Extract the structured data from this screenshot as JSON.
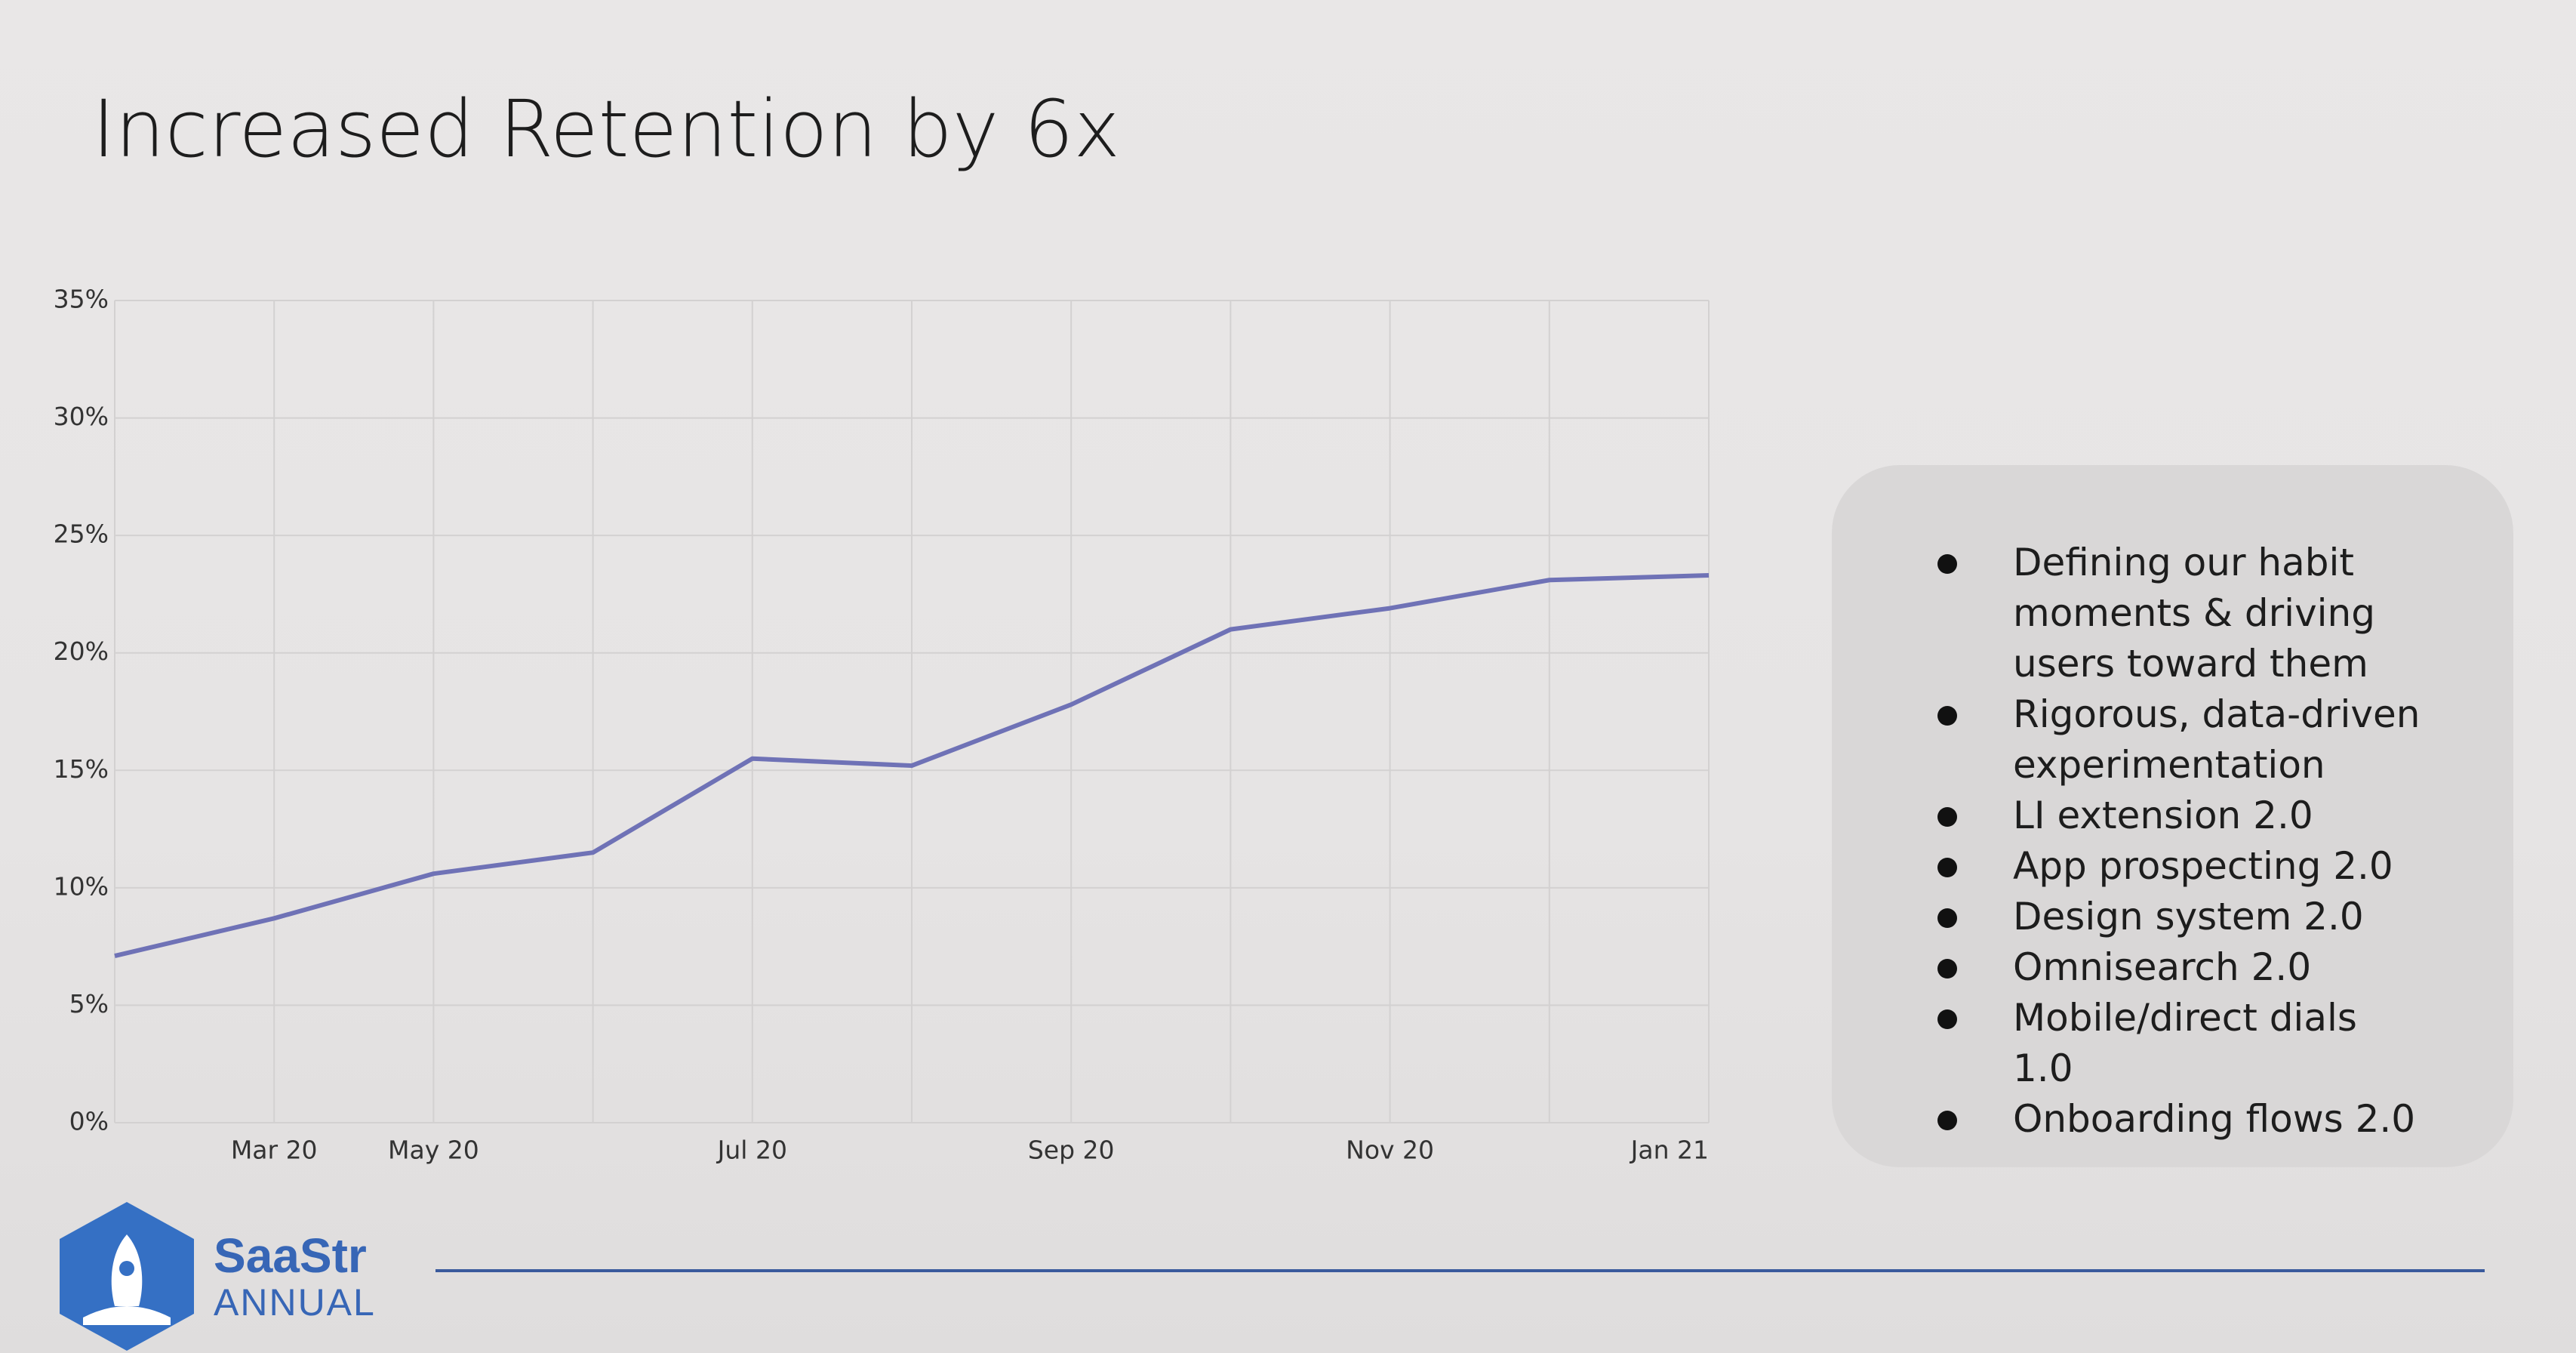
{
  "chart_data": {
    "type": "line",
    "title": "Increased Retention by 6x",
    "categories": [
      null,
      "Mar 20",
      "May 20",
      null,
      "Jul 20",
      null,
      "Sep 20",
      null,
      "Nov 20",
      null,
      "Jan 21"
    ],
    "values": [
      7.1,
      8.7,
      10.6,
      11.5,
      15.5,
      15.2,
      17.8,
      21.0,
      21.9,
      23.1,
      23.3
    ],
    "color": "#6f72b6",
    "ylim": [
      0,
      35
    ],
    "yticks": [
      {
        "value": 0,
        "label": "0%"
      },
      {
        "value": 5,
        "label": "5%"
      },
      {
        "value": 10,
        "label": "10%"
      },
      {
        "value": 15,
        "label": "15%"
      },
      {
        "value": 20,
        "label": "20%"
      },
      {
        "value": 25,
        "label": "25%"
      },
      {
        "value": 30,
        "label": "30%"
      },
      {
        "value": 35,
        "label": "35%"
      }
    ],
    "grid": true
  },
  "bullets": [
    "Defining our habit moments & driving users toward them",
    "Rigorous, data-driven experimentation",
    "LI extension 2.0",
    "App prospecting 2.0",
    "Design system 2.0",
    "Omnisearch 2.0",
    "Mobile/direct dials 1.0",
    "Onboarding flows 2.0"
  ],
  "logo": {
    "name": "SaaStr",
    "subtitle": "ANNUAL"
  }
}
